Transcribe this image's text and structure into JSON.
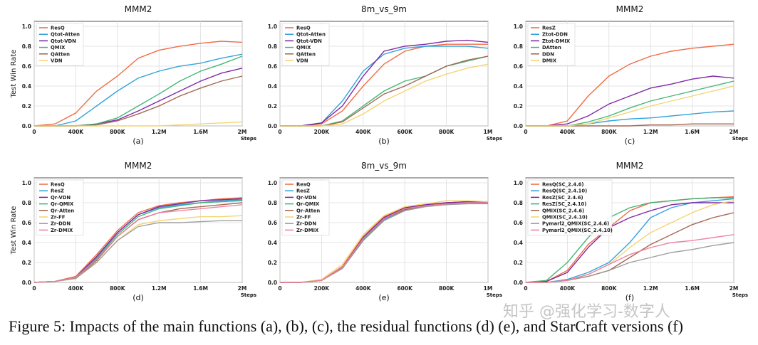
{
  "caption": "Figure 5: Impacts of the main functions (a), (b), (c), the residual functions (d) (e), and StarCraft versions (f)",
  "watermark": "知乎 @强化学习-数字人",
  "chart_data": [
    {
      "type": "line",
      "title": "MMM2",
      "sublabel": "(a)",
      "xlabel": "Steps",
      "ylabel": "Test Win Rate",
      "xlim": [
        0,
        2000000
      ],
      "ylim": [
        0,
        1.0
      ],
      "grid": true,
      "legend": "top-left",
      "xticks": [
        0,
        400000,
        800000,
        1200000,
        1600000,
        2000000
      ],
      "xtick_labels": [
        "0",
        "400K",
        "800K",
        "1.2M",
        "1.6M",
        "2M"
      ],
      "yticks": [
        0,
        0.2,
        0.4,
        0.6,
        0.8,
        1.0
      ],
      "ytick_labels": [
        "0.0",
        "0.2",
        "0.4",
        "0.6",
        "0.8",
        "1.0"
      ],
      "x": [
        0,
        200000,
        400000,
        600000,
        800000,
        1000000,
        1200000,
        1400000,
        1600000,
        1800000,
        2000000
      ],
      "series": [
        {
          "name": "ResQ",
          "color": "#f0643a",
          "values": [
            0,
            0.02,
            0.13,
            0.35,
            0.5,
            0.68,
            0.76,
            0.8,
            0.83,
            0.85,
            0.84
          ]
        },
        {
          "name": "Qtot-Atten",
          "color": "#2a9fd8",
          "values": [
            0,
            0,
            0.05,
            0.2,
            0.35,
            0.48,
            0.55,
            0.6,
            0.63,
            0.68,
            0.72
          ]
        },
        {
          "name": "Qtot-VDN",
          "color": "#7a1fa2",
          "values": [
            0,
            0,
            0,
            0.02,
            0.06,
            0.15,
            0.25,
            0.35,
            0.45,
            0.53,
            0.58
          ]
        },
        {
          "name": "QMIX",
          "color": "#3cb371",
          "values": [
            0,
            0,
            0,
            0.02,
            0.08,
            0.2,
            0.32,
            0.45,
            0.55,
            0.62,
            0.7
          ]
        },
        {
          "name": "QAtten",
          "color": "#a0604a",
          "values": [
            0,
            0,
            0,
            0.01,
            0.05,
            0.12,
            0.2,
            0.3,
            0.38,
            0.45,
            0.5
          ]
        },
        {
          "name": "VDN",
          "color": "#f3d36b",
          "values": [
            0,
            0,
            0,
            0,
            0,
            0,
            0,
            0.01,
            0.02,
            0.03,
            0.04
          ]
        }
      ]
    },
    {
      "type": "line",
      "title": "8m_vs_9m",
      "sublabel": "(b)",
      "xlabel": "Steps",
      "ylabel": "",
      "xlim": [
        0,
        1000000
      ],
      "ylim": [
        0,
        1.0
      ],
      "grid": true,
      "legend": "top-left",
      "xticks": [
        0,
        200000,
        400000,
        600000,
        800000,
        1000000
      ],
      "xtick_labels": [
        "0",
        "200K",
        "400K",
        "600K",
        "800K",
        "1M"
      ],
      "yticks": [
        0,
        0.2,
        0.4,
        0.6,
        0.8,
        1.0
      ],
      "ytick_labels": [
        "0.0",
        "0.2",
        "0.4",
        "0.6",
        "0.8",
        "1.0"
      ],
      "x": [
        0,
        100000,
        200000,
        300000,
        400000,
        500000,
        600000,
        700000,
        800000,
        900000,
        1000000
      ],
      "series": [
        {
          "name": "ResQ",
          "color": "#f0643a",
          "values": [
            0,
            0,
            0.02,
            0.15,
            0.4,
            0.62,
            0.75,
            0.8,
            0.82,
            0.82,
            0.82
          ]
        },
        {
          "name": "Qtot-Atten",
          "color": "#2a9fd8",
          "values": [
            0,
            0,
            0.03,
            0.25,
            0.55,
            0.72,
            0.78,
            0.8,
            0.8,
            0.8,
            0.78
          ]
        },
        {
          "name": "Qtot-VDN",
          "color": "#7a1fa2",
          "values": [
            0,
            0,
            0.03,
            0.2,
            0.5,
            0.75,
            0.8,
            0.82,
            0.85,
            0.86,
            0.84
          ]
        },
        {
          "name": "QMIX",
          "color": "#3cb371",
          "values": [
            0,
            0,
            0,
            0.05,
            0.2,
            0.35,
            0.45,
            0.5,
            0.6,
            0.65,
            0.7
          ]
        },
        {
          "name": "QAtten",
          "color": "#a0604a",
          "values": [
            0,
            0,
            0,
            0.04,
            0.18,
            0.32,
            0.4,
            0.5,
            0.6,
            0.66,
            0.7
          ]
        },
        {
          "name": "VDN",
          "color": "#f3d36b",
          "values": [
            0,
            0,
            0,
            0.02,
            0.12,
            0.25,
            0.35,
            0.45,
            0.52,
            0.58,
            0.62
          ]
        }
      ]
    },
    {
      "type": "line",
      "title": "MMM2",
      "sublabel": "(c)",
      "xlabel": "Steps",
      "ylabel": "",
      "xlim": [
        0,
        2000000
      ],
      "ylim": [
        0,
        1.0
      ],
      "grid": true,
      "legend": "top-left",
      "xticks": [
        0,
        400000,
        800000,
        1200000,
        1600000,
        2000000
      ],
      "xtick_labels": [
        "0",
        "400K",
        "800K",
        "1.2M",
        "1.6M",
        "2M"
      ],
      "yticks": [
        0,
        0.2,
        0.4,
        0.6,
        0.8,
        1.0
      ],
      "ytick_labels": [
        "0.0",
        "0.2",
        "0.4",
        "0.6",
        "0.8",
        "1.0"
      ],
      "x": [
        0,
        200000,
        400000,
        600000,
        800000,
        1000000,
        1200000,
        1400000,
        1600000,
        1800000,
        2000000
      ],
      "series": [
        {
          "name": "ResZ",
          "color": "#f0643a",
          "values": [
            0,
            0,
            0.05,
            0.3,
            0.5,
            0.62,
            0.7,
            0.75,
            0.78,
            0.8,
            0.82
          ]
        },
        {
          "name": "Ztot-DDN",
          "color": "#2a9fd8",
          "values": [
            0,
            0,
            0,
            0.02,
            0.05,
            0.07,
            0.08,
            0.1,
            0.12,
            0.14,
            0.15
          ]
        },
        {
          "name": "Ztot-DMIX",
          "color": "#7a1fa2",
          "values": [
            0,
            0,
            0.02,
            0.1,
            0.22,
            0.3,
            0.38,
            0.42,
            0.47,
            0.5,
            0.48
          ]
        },
        {
          "name": "DAtten",
          "color": "#3cb371",
          "values": [
            0,
            0,
            0,
            0.04,
            0.1,
            0.18,
            0.25,
            0.3,
            0.35,
            0.4,
            0.45
          ]
        },
        {
          "name": "DDN",
          "color": "#a0604a",
          "values": [
            0,
            0,
            0,
            0,
            0,
            0,
            0.01,
            0.01,
            0.02,
            0.02,
            0.02
          ]
        },
        {
          "name": "DMIX",
          "color": "#f3d36b",
          "values": [
            0,
            0,
            0,
            0.02,
            0.08,
            0.14,
            0.2,
            0.25,
            0.3,
            0.35,
            0.4
          ]
        }
      ]
    },
    {
      "type": "line",
      "title": "MMM2",
      "sublabel": "(d)",
      "xlabel": "Steps",
      "ylabel": "Test Win Rate",
      "xlim": [
        0,
        2000000
      ],
      "ylim": [
        0,
        1.0
      ],
      "grid": true,
      "legend": "top-left",
      "xticks": [
        0,
        400000,
        800000,
        1200000,
        1600000,
        2000000
      ],
      "xtick_labels": [
        "0",
        "400K",
        "800K",
        "1.2M",
        "1.6M",
        "2M"
      ],
      "yticks": [
        0,
        0.2,
        0.4,
        0.6,
        0.8,
        1.0
      ],
      "ytick_labels": [
        "0.0",
        "0.2",
        "0.4",
        "0.6",
        "0.8",
        "1.0"
      ],
      "x": [
        0,
        200000,
        400000,
        600000,
        800000,
        1000000,
        1200000,
        1400000,
        1600000,
        1800000,
        2000000
      ],
      "series": [
        {
          "name": "ResQ",
          "color": "#f0643a",
          "values": [
            0,
            0.01,
            0.06,
            0.28,
            0.52,
            0.7,
            0.77,
            0.8,
            0.82,
            0.84,
            0.85
          ]
        },
        {
          "name": "ResZ",
          "color": "#2a9fd8",
          "values": [
            0,
            0.01,
            0.05,
            0.25,
            0.5,
            0.68,
            0.75,
            0.78,
            0.8,
            0.82,
            0.83
          ]
        },
        {
          "name": "Qr-VDN",
          "color": "#7a1fa2",
          "values": [
            0,
            0.01,
            0.05,
            0.26,
            0.5,
            0.68,
            0.76,
            0.79,
            0.82,
            0.83,
            0.84
          ]
        },
        {
          "name": "Qr-QMIX",
          "color": "#3cb371",
          "values": [
            0,
            0.01,
            0.05,
            0.24,
            0.48,
            0.66,
            0.74,
            0.77,
            0.8,
            0.81,
            0.82
          ]
        },
        {
          "name": "Qr-Atten",
          "color": "#a0604a",
          "values": [
            0,
            0.01,
            0.04,
            0.22,
            0.46,
            0.63,
            0.7,
            0.74,
            0.76,
            0.78,
            0.8
          ]
        },
        {
          "name": "Zr-FF",
          "color": "#f3d36b",
          "values": [
            0,
            0.01,
            0.04,
            0.2,
            0.42,
            0.58,
            0.62,
            0.64,
            0.66,
            0.66,
            0.67
          ]
        },
        {
          "name": "Zr-DDN",
          "color": "#9a9a9a",
          "values": [
            0,
            0.01,
            0.04,
            0.2,
            0.42,
            0.56,
            0.6,
            0.6,
            0.61,
            0.62,
            0.62
          ]
        },
        {
          "name": "Zr-DMIX",
          "color": "#ec7d9c",
          "values": [
            0,
            0.01,
            0.05,
            0.23,
            0.46,
            0.63,
            0.7,
            0.72,
            0.74,
            0.76,
            0.78
          ]
        }
      ]
    },
    {
      "type": "line",
      "title": "8m_vs_9m",
      "sublabel": "(e)",
      "xlabel": "Steps",
      "ylabel": "",
      "xlim": [
        0,
        1000000
      ],
      "ylim": [
        0,
        1.0
      ],
      "grid": true,
      "legend": "top-left",
      "xticks": [
        0,
        200000,
        400000,
        600000,
        800000,
        1000000
      ],
      "xtick_labels": [
        "0",
        "200K",
        "400K",
        "600K",
        "800K",
        "1M"
      ],
      "yticks": [
        0,
        0.2,
        0.4,
        0.6,
        0.8,
        1.0
      ],
      "ytick_labels": [
        "0.0",
        "0.2",
        "0.4",
        "0.6",
        "0.8",
        "1.0"
      ],
      "x": [
        0,
        100000,
        200000,
        300000,
        400000,
        500000,
        600000,
        700000,
        800000,
        900000,
        1000000
      ],
      "series": [
        {
          "name": "ResQ",
          "color": "#f0643a",
          "values": [
            0,
            0,
            0.02,
            0.16,
            0.46,
            0.66,
            0.75,
            0.78,
            0.8,
            0.81,
            0.8
          ]
        },
        {
          "name": "ResZ",
          "color": "#2a9fd8",
          "values": [
            0,
            0,
            0.02,
            0.14,
            0.42,
            0.63,
            0.73,
            0.77,
            0.79,
            0.8,
            0.8
          ]
        },
        {
          "name": "Qr-VDN",
          "color": "#7a1fa2",
          "values": [
            0,
            0,
            0.02,
            0.15,
            0.45,
            0.65,
            0.75,
            0.78,
            0.8,
            0.81,
            0.81
          ]
        },
        {
          "name": "Qr-QMIX",
          "color": "#3cb371",
          "values": [
            0,
            0,
            0.02,
            0.14,
            0.43,
            0.64,
            0.74,
            0.77,
            0.79,
            0.8,
            0.79
          ]
        },
        {
          "name": "Qr-Atten",
          "color": "#a0604a",
          "values": [
            0,
            0,
            0.02,
            0.15,
            0.44,
            0.64,
            0.73,
            0.77,
            0.79,
            0.79,
            0.8
          ]
        },
        {
          "name": "Zr-FF",
          "color": "#f3d36b",
          "values": [
            0,
            0,
            0.03,
            0.18,
            0.48,
            0.67,
            0.76,
            0.79,
            0.82,
            0.82,
            0.81
          ]
        },
        {
          "name": "Zr-DDN",
          "color": "#9a9a9a",
          "values": [
            0,
            0,
            0.02,
            0.14,
            0.42,
            0.62,
            0.72,
            0.76,
            0.78,
            0.79,
            0.79
          ]
        },
        {
          "name": "Zr-DMIX",
          "color": "#ec7d9c",
          "values": [
            0,
            0,
            0.02,
            0.15,
            0.44,
            0.64,
            0.74,
            0.77,
            0.79,
            0.8,
            0.8
          ]
        }
      ]
    },
    {
      "type": "line",
      "title": "MMM2",
      "sublabel": "(f)",
      "xlabel": "Steps",
      "ylabel": "",
      "xlim": [
        0,
        2000000
      ],
      "ylim": [
        0,
        1.0
      ],
      "grid": true,
      "legend": "top-left",
      "xticks": [
        0,
        400000,
        800000,
        1200000,
        1600000,
        2000000
      ],
      "xtick_labels": [
        "0",
        "400K",
        "800K",
        "1.2M",
        "1.6M",
        "2M"
      ],
      "yticks": [
        0,
        0.2,
        0.4,
        0.6,
        0.8,
        1.0
      ],
      "ytick_labels": [
        "0.0",
        "0.2",
        "0.4",
        "0.6",
        "0.8",
        "1.0"
      ],
      "x": [
        0,
        200000,
        400000,
        600000,
        800000,
        1000000,
        1200000,
        1400000,
        1600000,
        1800000,
        2000000
      ],
      "series": [
        {
          "name": "ResQ(SC_2.4.6)",
          "color": "#f0643a",
          "values": [
            0,
            0.01,
            0.12,
            0.38,
            0.55,
            0.72,
            0.8,
            0.82,
            0.84,
            0.85,
            0.86
          ]
        },
        {
          "name": "ResQ(SC_2.4.10)",
          "color": "#2a9fd8",
          "values": [
            0,
            0,
            0.03,
            0.1,
            0.2,
            0.4,
            0.65,
            0.75,
            0.8,
            0.82,
            0.84
          ]
        },
        {
          "name": "ResZ(SC_2.4.6)",
          "color": "#7a1fa2",
          "values": [
            0,
            0.01,
            0.1,
            0.35,
            0.55,
            0.65,
            0.72,
            0.78,
            0.8,
            0.8,
            0.8
          ]
        },
        {
          "name": "ResZ(SC_2.4.10)",
          "color": "#3cb371",
          "values": [
            0,
            0.02,
            0.2,
            0.45,
            0.65,
            0.75,
            0.8,
            0.82,
            0.84,
            0.85,
            0.85
          ]
        },
        {
          "name": "QMIX(SC_2.4.6)",
          "color": "#a0604a",
          "values": [
            0,
            0,
            0.02,
            0.06,
            0.12,
            0.25,
            0.38,
            0.48,
            0.58,
            0.65,
            0.7
          ]
        },
        {
          "name": "QMIX(SC_2.4.10)",
          "color": "#f3d36b",
          "values": [
            0,
            0,
            0.02,
            0.08,
            0.18,
            0.35,
            0.5,
            0.6,
            0.7,
            0.78,
            0.82
          ]
        },
        {
          "name": "Pymarl2_QMIX(SC_2.4.6)",
          "color": "#9a9a9a",
          "values": [
            0,
            0,
            0.02,
            0.06,
            0.12,
            0.2,
            0.25,
            0.3,
            0.33,
            0.37,
            0.4
          ]
        },
        {
          "name": "Pymarl2_QMIX(SC_2.4.10)",
          "color": "#ec7d9c",
          "values": [
            0,
            0,
            0.02,
            0.08,
            0.18,
            0.28,
            0.35,
            0.4,
            0.42,
            0.45,
            0.48
          ]
        }
      ]
    }
  ]
}
